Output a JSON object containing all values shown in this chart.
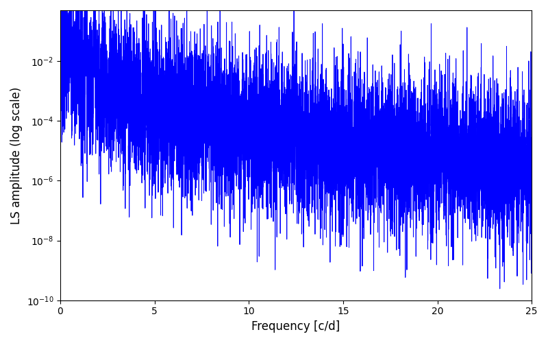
{
  "title": "",
  "xlabel": "Frequency [c/d]",
  "ylabel": "LS amplitude (log scale)",
  "xlim": [
    0,
    25
  ],
  "ylim_low": 1e-10,
  "ylim_high": 0.5,
  "xticks": [
    0,
    5,
    10,
    15,
    20,
    25
  ],
  "line_color": "#0000ff",
  "line_width": 0.7,
  "background_color": "#ffffff",
  "freq_max": 25.0,
  "n_points": 8000,
  "seed": 7,
  "figsize": [
    8.0,
    5.0
  ],
  "dpi": 100
}
